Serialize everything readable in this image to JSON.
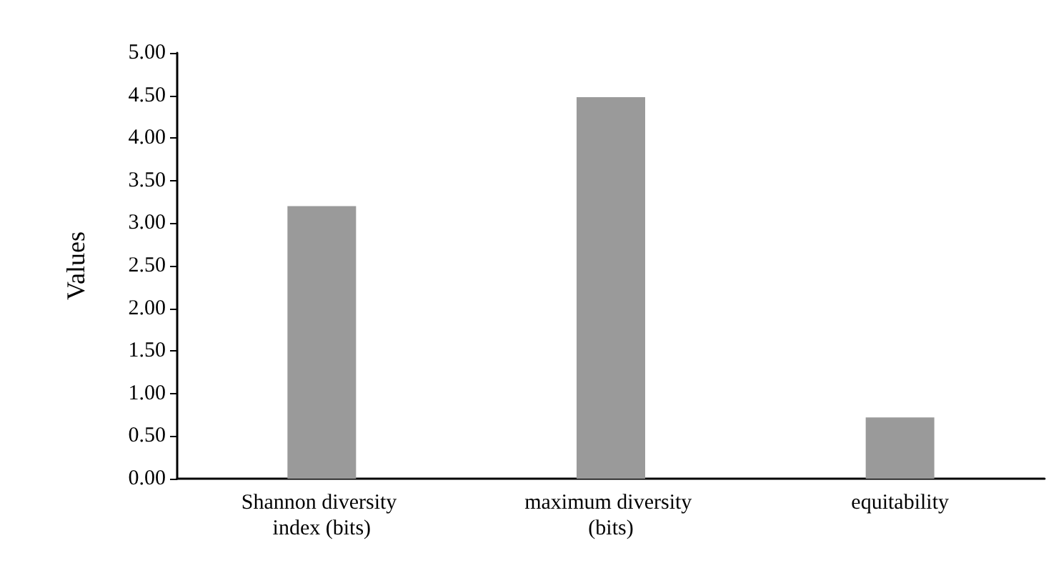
{
  "chart_data": {
    "type": "bar",
    "ylabel": "Values",
    "categories": [
      "Shannon diversity index (bits)",
      "maximum diversity (bits)",
      "equitability"
    ],
    "values": [
      3.2,
      4.48,
      0.72
    ],
    "color": "#9a9a9a",
    "ylim": [
      0,
      5
    ],
    "yticks": [
      {
        "value": 0,
        "label": "0.00"
      },
      {
        "value": 0.5,
        "label": "0.50"
      },
      {
        "value": 1,
        "label": "1.00"
      },
      {
        "value": 1.5,
        "label": "1.50"
      },
      {
        "value": 2,
        "label": "2.00"
      },
      {
        "value": 2.5,
        "label": "2.50"
      },
      {
        "value": 3,
        "label": "3.00"
      },
      {
        "value": 3.5,
        "label": "3.50"
      },
      {
        "value": 4,
        "label": "4.00"
      },
      {
        "value": 4.5,
        "label": "4.50"
      },
      {
        "value": 5,
        "label": "5.00"
      }
    ],
    "grid": false
  }
}
